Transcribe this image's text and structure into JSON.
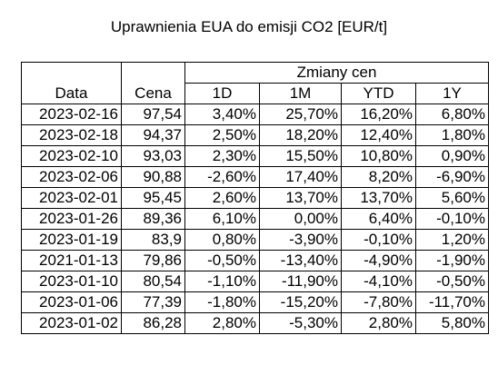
{
  "title": "Uprawnienia EUA do emisji CO2 [EUR/t]",
  "header": {
    "group": "Zmiany cen",
    "date": "Data",
    "price": "Cena",
    "d1": "1D",
    "m1": "1M",
    "ytd": "YTD",
    "y1": "1Y"
  },
  "rows": [
    {
      "date": "2023-02-16",
      "price": "97,54",
      "d1": "3,40%",
      "m1": "25,70%",
      "ytd": "16,20%",
      "y1": "6,80%"
    },
    {
      "date": "2023-02-18",
      "price": "94,37",
      "d1": "2,50%",
      "m1": "18,20%",
      "ytd": "12,40%",
      "y1": "1,80%"
    },
    {
      "date": "2023-02-10",
      "price": "93,03",
      "d1": "2,30%",
      "m1": "15,50%",
      "ytd": "10,80%",
      "y1": "0,90%"
    },
    {
      "date": "2023-02-06",
      "price": "90,88",
      "d1": "-2,60%",
      "m1": "17,40%",
      "ytd": "8,20%",
      "y1": "-6,90%"
    },
    {
      "date": "2023-02-01",
      "price": "95,45",
      "d1": "2,60%",
      "m1": "13,70%",
      "ytd": "13,70%",
      "y1": "5,60%"
    },
    {
      "date": "2023-01-26",
      "price": "89,36",
      "d1": "6,10%",
      "m1": "0,00%",
      "ytd": "6,40%",
      "y1": "-0,10%"
    },
    {
      "date": "2023-01-19",
      "price": "83,9",
      "d1": "0,80%",
      "m1": "-3,90%",
      "ytd": "-0,10%",
      "y1": "1,20%"
    },
    {
      "date": "2021-01-13",
      "price": "79,86",
      "d1": "-0,50%",
      "m1": "-13,40%",
      "ytd": "-4,90%",
      "y1": "-1,90%"
    },
    {
      "date": "2023-01-10",
      "price": "80,54",
      "d1": "-1,10%",
      "m1": "-11,90%",
      "ytd": "-4,10%",
      "y1": "-0,50%"
    },
    {
      "date": "2023-01-06",
      "price": "77,39",
      "d1": "-1,80%",
      "m1": "-15,20%",
      "ytd": "-7,80%",
      "y1": "-11,70%"
    },
    {
      "date": "2023-01-02",
      "price": "86,28",
      "d1": "2,80%",
      "m1": "-5,30%",
      "ytd": "2,80%",
      "y1": "5,80%"
    }
  ]
}
